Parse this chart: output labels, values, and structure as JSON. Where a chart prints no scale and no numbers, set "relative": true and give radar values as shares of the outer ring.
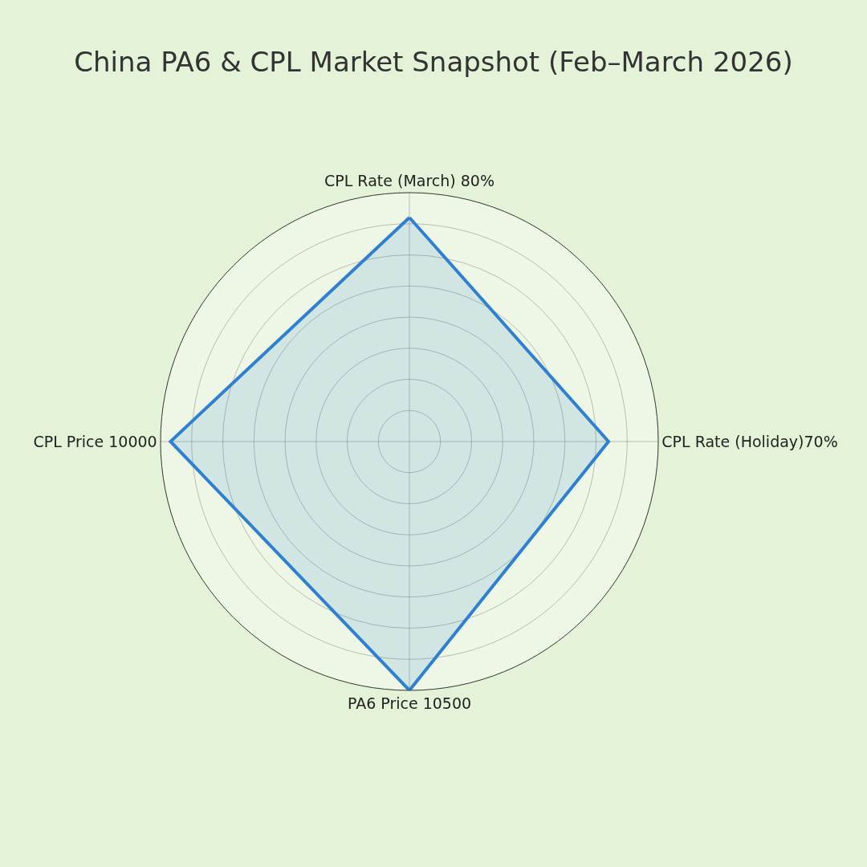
{
  "chart_data": {
    "type": "radar",
    "title": "China PA6 & CPL Market Snapshot (Feb–March 2026)",
    "categories": [
      "CPL Rate (March) 80%",
      "CPL Rate (Holiday)70%",
      "PA6 Price 10500",
      "CPL Price 10000"
    ],
    "relative": true,
    "series": [
      {
        "color": "#2f80d0",
        "values": [
          0.9,
          0.8,
          1.0,
          0.96
        ]
      }
    ],
    "grid": true,
    "marker": "none",
    "line_style": "solid"
  }
}
